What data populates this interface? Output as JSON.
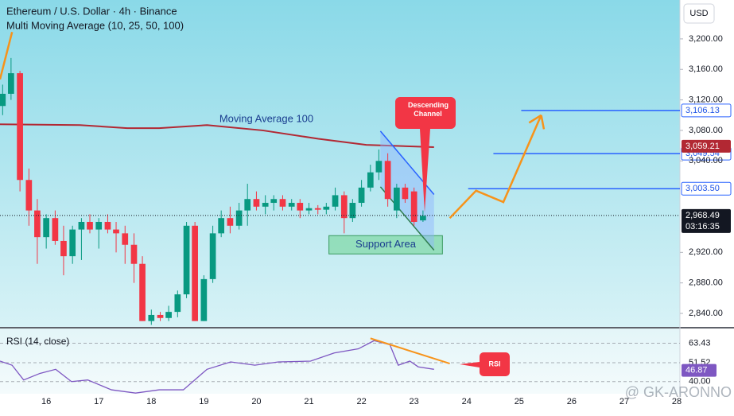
{
  "header": {
    "title": "Ethereum / U.S. Dollar · 4h · Binance",
    "indicator": "Multi Moving Average (10, 25, 50, 100)",
    "currency": "USD"
  },
  "chart_data": [
    {
      "type": "candlestick",
      "up_color": "#089981",
      "down_color": "#f23645",
      "x": [
        15.17,
        15.33,
        15.5,
        15.67,
        15.83,
        16.0,
        16.17,
        16.33,
        16.5,
        16.67,
        16.83,
        17.0,
        17.17,
        17.33,
        17.5,
        17.67,
        17.83,
        18.0,
        18.17,
        18.33,
        18.5,
        18.67,
        18.83,
        19.0,
        19.17,
        19.33,
        19.5,
        19.67,
        19.83,
        20.0,
        20.17,
        20.33,
        20.5,
        20.67,
        20.83,
        21.0,
        21.17,
        21.33,
        21.5,
        21.67,
        21.83,
        22.0,
        22.17,
        22.33,
        22.5,
        22.67,
        22.83,
        23.0,
        23.17
      ],
      "open": [
        3112,
        3128,
        3155,
        3015,
        2975,
        2940,
        2965,
        2935,
        2915,
        2950,
        2960,
        2950,
        2960,
        2950,
        2945,
        2930,
        2905,
        2830,
        2838,
        2834,
        2842,
        2865,
        2955,
        2830,
        2885,
        2945,
        2965,
        2955,
        2975,
        2990,
        2980,
        2985,
        2990,
        2980,
        2985,
        2975,
        2978,
        2976,
        2980,
        2995,
        2965,
        2985,
        3005,
        3025,
        3040,
        2975,
        3005,
        3000,
        2962
      ],
      "high": [
        3140,
        3175,
        3158,
        3030,
        2990,
        2970,
        2975,
        2955,
        2955,
        2965,
        2970,
        2965,
        2970,
        2960,
        2955,
        2945,
        2915,
        2845,
        2842,
        2850,
        2870,
        2960,
        2960,
        2890,
        2955,
        2975,
        2980,
        2985,
        3010,
        3000,
        2995,
        2995,
        2995,
        2990,
        2990,
        2985,
        2982,
        2985,
        3005,
        3000,
        2990,
        3015,
        3035,
        3055,
        3050,
        3010,
        3010,
        3005,
        2975
      ],
      "low": [
        3100,
        3120,
        3000,
        2955,
        2905,
        2925,
        2930,
        2890,
        2905,
        2910,
        2945,
        2925,
        2945,
        2920,
        2905,
        2880,
        2830,
        2825,
        2830,
        2830,
        2835,
        2860,
        2830,
        2830,
        2880,
        2940,
        2945,
        2950,
        2955,
        2975,
        2970,
        2975,
        2975,
        2975,
        2965,
        2970,
        2970,
        2970,
        2975,
        2945,
        2960,
        2980,
        3000,
        3015,
        2980,
        2965,
        2985,
        2955,
        2960
      ],
      "close": [
        3128,
        3155,
        3015,
        2975,
        2940,
        2965,
        2935,
        2915,
        2950,
        2960,
        2950,
        2960,
        2950,
        2945,
        2930,
        2905,
        2830,
        2838,
        2834,
        2842,
        2865,
        2955,
        2830,
        2885,
        2945,
        2965,
        2955,
        2975,
        2990,
        2980,
        2985,
        2990,
        2980,
        2985,
        2975,
        2978,
        2976,
        2980,
        2995,
        2965,
        2985,
        3005,
        3025,
        3040,
        2990,
        3005,
        2990,
        2960,
        2968
      ],
      "xlim": [
        15.12,
        28.06
      ],
      "xticks": [
        16,
        17,
        18,
        19,
        20,
        21,
        22,
        23,
        24,
        25,
        26,
        27,
        28
      ],
      "ylim": [
        2822.3,
        3251
      ],
      "yticks": [
        {
          "value": 3200,
          "label": "3,200.00"
        },
        {
          "value": 3160,
          "label": "3,160.00"
        },
        {
          "value": 3120,
          "label": "3,120.00"
        },
        {
          "value": 3080,
          "label": "3,080.00"
        },
        {
          "value": 3040,
          "label": "3,040.00"
        },
        {
          "value": 2920,
          "label": "2,920.00"
        },
        {
          "value": 2880,
          "label": "2,880.00"
        },
        {
          "value": 2840,
          "label": "2,840.00"
        }
      ],
      "moving_average": {
        "name": "Moving Average 100",
        "color": "#b22833",
        "x": [
          15.12,
          16.64,
          17.54,
          18.15,
          19.06,
          20.12,
          21.18,
          22.09,
          23.38
        ],
        "values": [
          3088,
          3087,
          3083,
          3083,
          3087,
          3080,
          3069,
          3061,
          3058
        ],
        "last": {
          "value": 3059.21,
          "label": "3,059.21"
        }
      },
      "levels": [
        {
          "value": 3106.13,
          "label": "3,106.13",
          "from": 25.04
        },
        {
          "value": 3049.54,
          "label": "3,049.54",
          "from": 24.51
        },
        {
          "value": 3003.5,
          "label": "3,003.50",
          "from": 24.03
        }
      ],
      "level_color": "#2962ff",
      "last_price": {
        "value": 2968.49,
        "label": "2,968.49",
        "countdown": "03:16:35"
      },
      "channel": {
        "label": "Descending Channel",
        "x": [
          22.36,
          23.38
        ],
        "upper": [
          3079,
          2996
        ],
        "lower": [
          3006,
          2923
        ]
      },
      "support": {
        "label": "Support Area",
        "x": [
          21.38,
          23.54
        ],
        "y": [
          2918,
          2942
        ]
      },
      "projection": {
        "color": "#f7931a",
        "x": [
          23.68,
          24.18,
          24.7,
          25.42
        ],
        "values": [
          2965,
          3001,
          2986,
          3100
        ]
      },
      "trend_line": {
        "x": [
          15.12,
          15.35
        ],
        "values": [
          3147,
          3209
        ]
      }
    },
    {
      "type": "line",
      "title": "RSI (14, close)",
      "color": "#7e57c2",
      "x": [
        15.12,
        15.35,
        15.57,
        15.88,
        16.18,
        16.48,
        16.79,
        17.24,
        17.7,
        18.15,
        18.61,
        19.06,
        19.51,
        19.97,
        20.42,
        21.03,
        21.48,
        21.94,
        22.24,
        22.54,
        22.7,
        22.92,
        23.08,
        23.38
      ],
      "values": [
        52.5,
        50,
        41,
        45,
        47.5,
        40,
        41,
        35,
        33,
        35,
        35,
        47.5,
        52,
        50,
        52,
        52.5,
        57.5,
        60,
        65,
        62.5,
        50,
        52.5,
        49,
        47.5
      ],
      "ylim": [
        32.6,
        72.4
      ],
      "yticks": [
        63.43,
        51.52,
        {
          "value": 40,
          "label": "40.00"
        }
      ],
      "last": {
        "value": 46.87,
        "label": "46.87"
      },
      "trend_line": {
        "x": [
          22.17,
          23.68
        ],
        "values": [
          66.4,
          51.0
        ]
      },
      "callout": "RSI"
    }
  ],
  "watermark": "@ GK-ARONNO"
}
